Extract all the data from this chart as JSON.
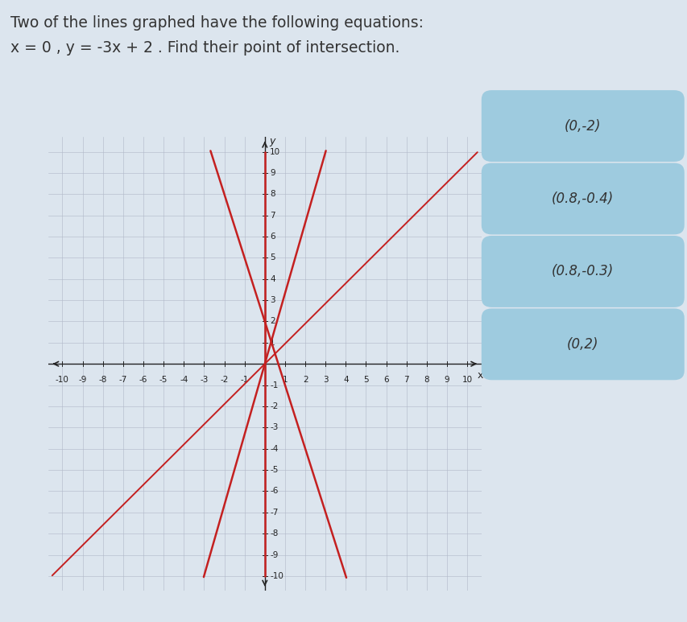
{
  "title_line1": "Two of the lines graphed have the following equations:",
  "title_line2": "x = 0 , y = -3x + 2 . Find their point of intersection.",
  "bg_color": "#dce5ee",
  "plot_bg": "#dce5ee",
  "grid_color": "#b0b8c8",
  "axis_color": "#222222",
  "axis_range": [
    -10,
    10
  ],
  "lines": [
    {
      "type": "vertical",
      "x": 0,
      "color": "#c42020",
      "lw": 1.8
    },
    {
      "type": "linear",
      "slope": -3,
      "intercept": 2,
      "color": "#c42020",
      "lw": 1.8
    },
    {
      "type": "linear",
      "slope": 3.33,
      "intercept": 0,
      "color": "#c42020",
      "lw": 1.8
    },
    {
      "type": "linear",
      "slope": 0.95,
      "intercept": 0,
      "color": "#c42020",
      "lw": 1.4
    }
  ],
  "choices": [
    "(0,-2)",
    "(0.8,-0.4)",
    "(0.8,-0.3)",
    "(0,2)"
  ],
  "choice_bg": "#9ecbdf",
  "choice_text_color": "#333333",
  "title_color": "#333333",
  "title_fontsize": 13.5,
  "choice_fontsize": 12,
  "axis_label_color": "#222222",
  "tick_fontsize": 7.5
}
